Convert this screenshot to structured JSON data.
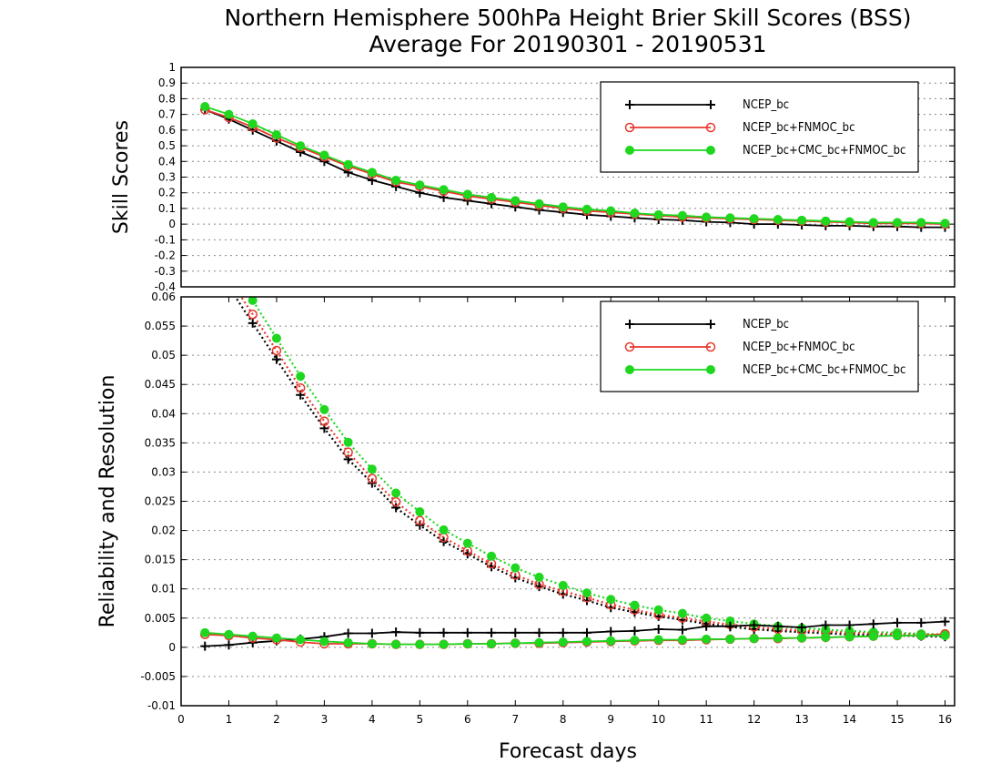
{
  "title": {
    "line1": "Northern Hemisphere 500hPa Height Brier Skill Scores (BSS)",
    "line2": "Average For 20190301 - 20190531"
  },
  "colors": {
    "NCEP_bc": "#000000",
    "NCEP_bc+FNMOC_bc": "#e8382e",
    "NCEP_bc+CMC_bc+FNMOC_bc": "#1ed71e"
  },
  "chart_data": [
    {
      "type": "line",
      "panel": "top",
      "ylabel": "Skill Scores",
      "xlabel": "",
      "xlim": [
        0,
        16.2
      ],
      "ylim": [
        -0.4,
        1.0
      ],
      "yticks": [
        "1",
        "0.9",
        "0.8",
        "0.7",
        "0.6",
        "0.5",
        "0.4",
        "0.3",
        "0.2",
        "0.1",
        "0",
        "-0.1",
        "-0.2",
        "-0.3",
        "-0.4"
      ],
      "grid": "horizontal dotted",
      "legend_position": "top-right",
      "x": [
        0.5,
        1,
        1.5,
        2,
        2.5,
        3,
        3.5,
        4,
        4.5,
        5,
        5.5,
        6,
        6.5,
        7,
        7.5,
        8,
        8.5,
        9,
        9.5,
        10,
        10.5,
        11,
        11.5,
        12,
        12.5,
        13,
        13.5,
        14,
        14.5,
        15,
        15.5,
        16
      ],
      "series": [
        {
          "name": "NCEP_bc",
          "marker": "plus",
          "line": "solid",
          "values": [
            0.73,
            0.67,
            0.6,
            0.53,
            0.46,
            0.4,
            0.33,
            0.28,
            0.24,
            0.2,
            0.17,
            0.15,
            0.13,
            0.11,
            0.09,
            0.075,
            0.06,
            0.05,
            0.04,
            0.03,
            0.025,
            0.015,
            0.01,
            0.0,
            0.0,
            -0.005,
            -0.01,
            -0.01,
            -0.015,
            -0.015,
            -0.02,
            -0.02
          ]
        },
        {
          "name": "NCEP_bc+FNMOC_bc",
          "marker": "circle-open",
          "line": "solid",
          "values": [
            0.73,
            0.68,
            0.62,
            0.55,
            0.49,
            0.43,
            0.37,
            0.32,
            0.27,
            0.24,
            0.21,
            0.18,
            0.16,
            0.14,
            0.12,
            0.1,
            0.085,
            0.075,
            0.065,
            0.055,
            0.045,
            0.04,
            0.035,
            0.03,
            0.025,
            0.02,
            0.015,
            0.01,
            0.005,
            0.005,
            0.005,
            0.0
          ]
        },
        {
          "name": "NCEP_bc+CMC_bc+FNMOC_bc",
          "marker": "circle-filled",
          "line": "solid",
          "values": [
            0.75,
            0.7,
            0.64,
            0.57,
            0.5,
            0.44,
            0.38,
            0.33,
            0.28,
            0.25,
            0.22,
            0.19,
            0.17,
            0.15,
            0.13,
            0.11,
            0.095,
            0.085,
            0.07,
            0.06,
            0.055,
            0.045,
            0.04,
            0.035,
            0.03,
            0.025,
            0.02,
            0.015,
            0.01,
            0.01,
            0.01,
            0.005
          ]
        }
      ],
      "legend": [
        "NCEP_bc",
        "NCEP_bc+FNMOC_bc",
        "NCEP_bc+CMC_bc+FNMOC_bc"
      ]
    },
    {
      "type": "line",
      "panel": "bottom",
      "ylabel": "Reliability and Resolution",
      "xlabel": "Forecast days",
      "xlim": [
        0,
        16.2
      ],
      "ylim": [
        -0.01,
        0.06
      ],
      "xticks": [
        "0",
        "1",
        "2",
        "3",
        "4",
        "5",
        "6",
        "7",
        "8",
        "9",
        "10",
        "11",
        "12",
        "13",
        "14",
        "15",
        "16"
      ],
      "yticks": [
        "0.06",
        "0.055",
        "0.05",
        "0.045",
        "0.04",
        "0.035",
        "0.03",
        "0.025",
        "0.02",
        "0.015",
        "0.01",
        "0.005",
        "0",
        "-0.005",
        "-0.01"
      ],
      "grid": "horizontal dotted",
      "legend_position": "top-right",
      "x": [
        0.5,
        1,
        1.5,
        2,
        2.5,
        3,
        3.5,
        4,
        4.5,
        5,
        5.5,
        6,
        6.5,
        7,
        7.5,
        8,
        8.5,
        9,
        9.5,
        10,
        10.5,
        11,
        11.5,
        12,
        12.5,
        13,
        13.5,
        14,
        14.5,
        15,
        15.5,
        16
      ],
      "resolution_series": [
        {
          "name": "NCEP_bc",
          "marker": "plus",
          "line": "dotted",
          "values": [
            null,
            null,
            0.0555,
            0.0493,
            0.0432,
            0.0375,
            0.0322,
            0.0281,
            0.0239,
            0.0209,
            0.0181,
            0.016,
            0.0138,
            0.0119,
            0.0104,
            0.0091,
            0.008,
            0.0068,
            0.006,
            0.0053,
            0.0047,
            0.004,
            0.0035,
            0.0031,
            0.0028,
            0.0026,
            0.0024,
            0.0022,
            0.0021,
            0.002,
            0.0019,
            0.0018
          ]
        },
        {
          "name": "NCEP_bc+FNMOC_bc",
          "marker": "circle-open",
          "line": "dotted",
          "values": [
            null,
            null,
            0.057,
            0.0508,
            0.0444,
            0.0387,
            0.0334,
            0.0289,
            0.0249,
            0.0217,
            0.0188,
            0.0165,
            0.0143,
            0.0124,
            0.0108,
            0.0096,
            0.0085,
            0.0073,
            0.0064,
            0.0056,
            0.005,
            0.0044,
            0.0039,
            0.0035,
            0.0031,
            0.0029,
            0.0027,
            0.0025,
            0.0024,
            0.0023,
            0.0022,
            0.0021
          ]
        },
        {
          "name": "NCEP_bc+CMC_bc+FNMOC_bc",
          "marker": "circle-filled",
          "line": "dotted",
          "values": [
            null,
            null,
            0.0594,
            0.0529,
            0.0464,
            0.0407,
            0.0351,
            0.0305,
            0.0264,
            0.0232,
            0.0201,
            0.0178,
            0.0156,
            0.0136,
            0.012,
            0.0106,
            0.0093,
            0.0082,
            0.0072,
            0.0064,
            0.0058,
            0.005,
            0.0045,
            0.004,
            0.0036,
            0.0033,
            0.003,
            0.0028,
            0.0026,
            0.0025,
            0.0023,
            0.0022
          ]
        }
      ],
      "reliability_series": [
        {
          "name": "NCEP_bc",
          "marker": "plus",
          "line": "solid",
          "values": [
            0.0002,
            0.0004,
            0.0008,
            0.0011,
            0.0014,
            0.0018,
            0.0024,
            0.0024,
            0.0026,
            0.0025,
            0.0025,
            0.0025,
            0.0025,
            0.0025,
            0.0025,
            0.0025,
            0.0025,
            0.0027,
            0.0028,
            0.0031,
            0.003,
            0.0036,
            0.0036,
            0.0038,
            0.0036,
            0.0034,
            0.0038,
            0.0038,
            0.004,
            0.0042,
            0.0042,
            0.0044
          ]
        },
        {
          "name": "NCEP_bc+FNMOC_bc",
          "marker": "circle-open",
          "line": "solid",
          "values": [
            0.0022,
            0.002,
            0.0016,
            0.0013,
            0.0009,
            0.0006,
            0.0006,
            0.0006,
            0.0005,
            0.0005,
            0.0005,
            0.0006,
            0.0006,
            0.0007,
            0.0007,
            0.0008,
            0.0009,
            0.001,
            0.0011,
            0.0012,
            0.0012,
            0.0013,
            0.0014,
            0.0015,
            0.0015,
            0.0016,
            0.0017,
            0.0018,
            0.0019,
            0.002,
            0.002,
            0.0023
          ]
        },
        {
          "name": "NCEP_bc+CMC_bc+FNMOC_bc",
          "marker": "circle-filled",
          "line": "solid",
          "values": [
            0.0025,
            0.0022,
            0.0019,
            0.0016,
            0.0013,
            0.001,
            0.0008,
            0.0006,
            0.0005,
            0.0005,
            0.0005,
            0.0006,
            0.0006,
            0.0007,
            0.0008,
            0.0009,
            0.001,
            0.0011,
            0.0012,
            0.0013,
            0.0013,
            0.0014,
            0.0014,
            0.0015,
            0.0016,
            0.0016,
            0.0017,
            0.0018,
            0.0019,
            0.002,
            0.002,
            0.002
          ]
        }
      ],
      "legend": [
        "NCEP_bc",
        "NCEP_bc+FNMOC_bc",
        "NCEP_bc+CMC_bc+FNMOC_bc"
      ]
    }
  ]
}
